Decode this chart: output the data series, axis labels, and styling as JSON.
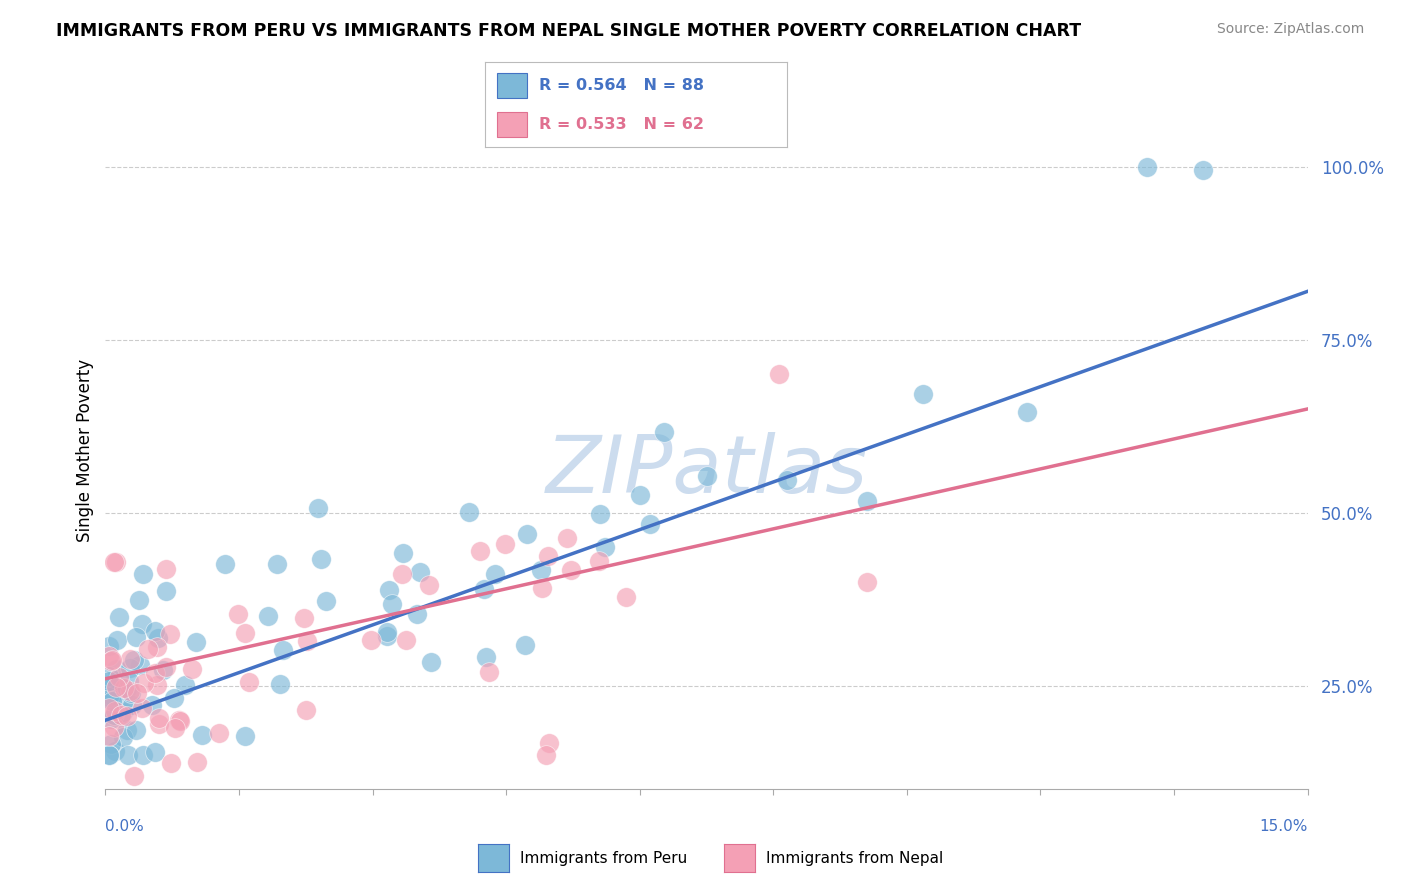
{
  "title": "IMMIGRANTS FROM PERU VS IMMIGRANTS FROM NEPAL SINGLE MOTHER POVERTY CORRELATION CHART",
  "source": "Source: ZipAtlas.com",
  "ylabel": "Single Mother Poverty",
  "legend_label_blue": "Immigrants from Peru",
  "legend_label_pink": "Immigrants from Nepal",
  "R_blue": 0.564,
  "N_blue": 88,
  "R_pink": 0.533,
  "N_pink": 62,
  "color_blue": "#7db8d8",
  "color_pink": "#f4a0b5",
  "line_color_blue": "#4472c4",
  "line_color_pink": "#e07090",
  "watermark": "ZIPatlas",
  "watermark_color": "#ccdcee",
  "xmin": 0.0,
  "xmax": 15.0,
  "ymin": 10.0,
  "ymax": 108.0,
  "yticks": [
    25.0,
    50.0,
    75.0,
    100.0
  ],
  "ytick_labels": [
    "25.0%",
    "50.0%",
    "75.0%",
    "100.0%"
  ],
  "trend_blue_y0": 20.0,
  "trend_blue_y1": 82.0,
  "trend_pink_y0": 26.0,
  "trend_pink_y1": 65.0
}
